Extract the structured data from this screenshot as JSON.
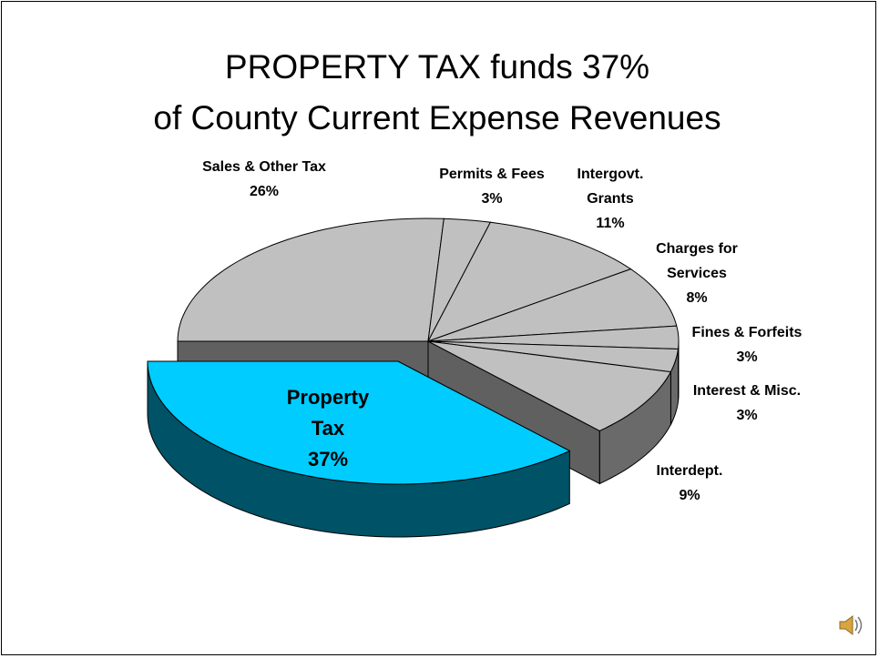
{
  "chart_data": {
    "type": "pie3d",
    "title": "PROPERTY TAX funds 37%\nof County Current Expense Revenues",
    "categories": [
      "Property Tax",
      "Sales & Other Tax",
      "Permits & Fees",
      "Intergovt. Grants",
      "Charges for Services",
      "Fines & Forfeits",
      "Interest & Misc.",
      "Interdept."
    ],
    "values": [
      37,
      26,
      3,
      11,
      8,
      3,
      3,
      9
    ],
    "value_labels": [
      "37%",
      "26%",
      "3%",
      "11%",
      "8%",
      "3%",
      "3%",
      "9%"
    ],
    "colors": [
      "#00ccff",
      "#c0c0c0",
      "#c0c0c0",
      "#c0c0c0",
      "#c0c0c0",
      "#c0c0c0",
      "#c0c0c0",
      "#c0c0c0"
    ],
    "exploded": [
      0
    ]
  }
}
